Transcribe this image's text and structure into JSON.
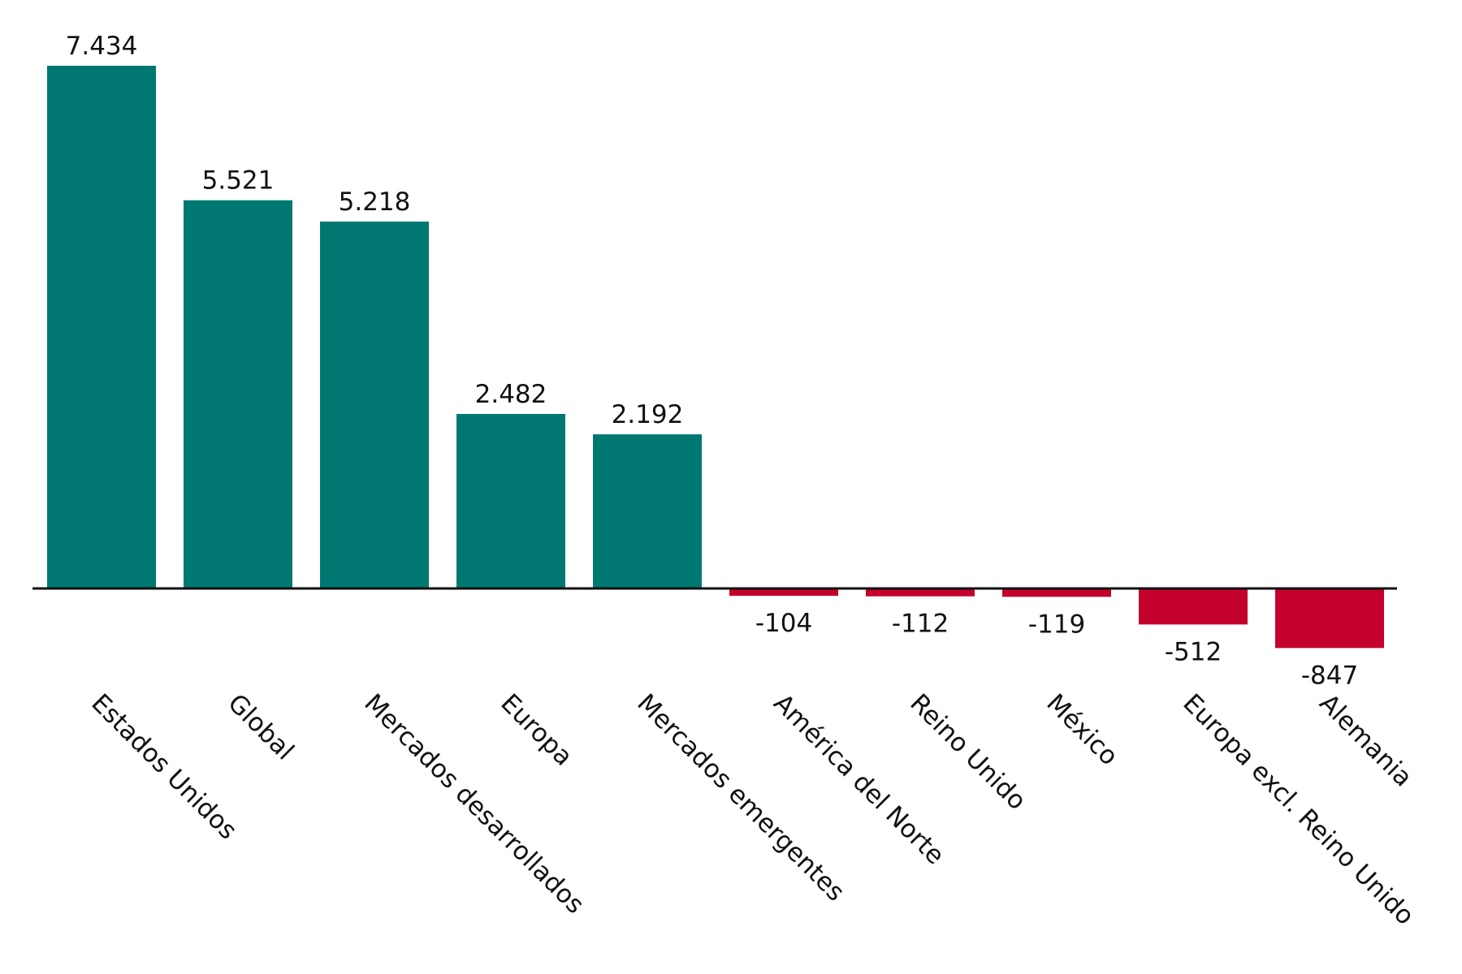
{
  "chart_data": {
    "type": "bar",
    "categories": [
      "Estados Unidos",
      "Global",
      "Mercados desarrollados",
      "Europa",
      "Mercados emergentes",
      "América del Norte",
      "Reino Unido",
      "México",
      "Europa excl. Reino Unido",
      "Alemania"
    ],
    "values": [
      7434,
      5521,
      5218,
      2482,
      2192,
      -104,
      -112,
      -119,
      -512,
      -847
    ],
    "value_labels": [
      "7.434",
      "5.521",
      "5.218",
      "2.482",
      "2.192",
      "-104",
      "-112",
      "-119",
      "-512",
      "-847"
    ],
    "title": "",
    "xlabel": "",
    "ylabel": "",
    "ylim": [
      -847,
      7434
    ],
    "grid": false,
    "colors": {
      "positive": "#007872",
      "negative": "#C4002C",
      "axis": "#111111"
    }
  }
}
